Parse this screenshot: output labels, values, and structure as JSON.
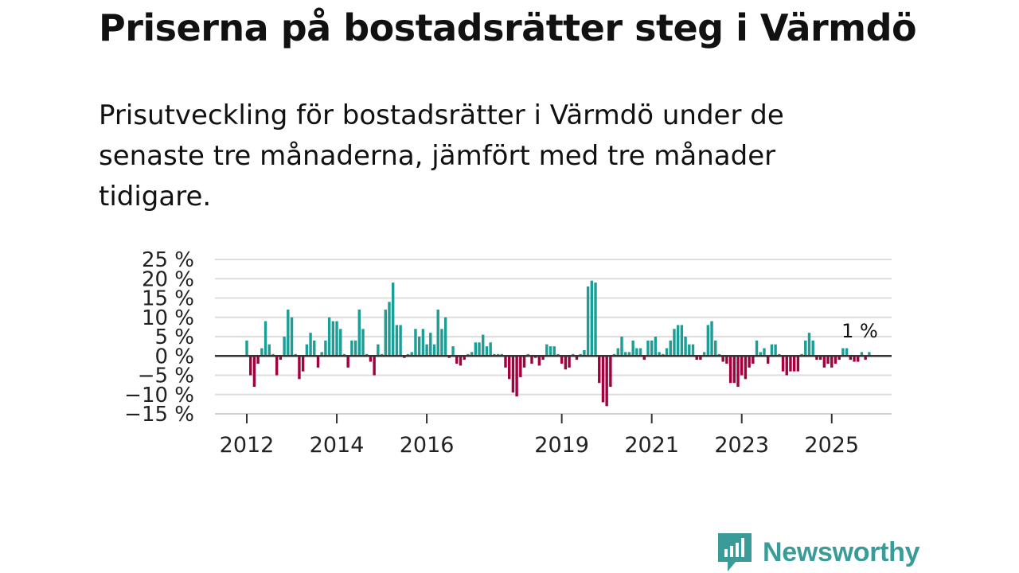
{
  "title": "Priserna på bostadsrätter steg i Värmdö",
  "subtitle": "Prisutveckling för bostadsrätter i Värmdö under de senaste tre månaderna, jämfört med tre månader tidigare.",
  "brand": {
    "name": "Newsworthy",
    "color": "#3a9c99"
  },
  "colors": {
    "positive": "#1a9e95",
    "negative": "#a3003f",
    "zero_line": "#333333",
    "grid": "#dddddd"
  },
  "chart_data": {
    "type": "bar",
    "ylabel": "",
    "xlabel": "",
    "ylim": [
      -15,
      25
    ],
    "y_ticks": [
      25,
      20,
      15,
      10,
      5,
      0,
      -5,
      -10,
      -15
    ],
    "y_tick_labels": [
      "25 %",
      "20 %",
      "15 %",
      "10 %",
      "5 %",
      "0 %",
      "−5 %",
      "−10 %",
      "−15 %"
    ],
    "x_ticks": [
      {
        "label": "2012",
        "index": 0
      },
      {
        "label": "2014",
        "index": 24
      },
      {
        "label": "2016",
        "index": 48
      },
      {
        "label": "2019",
        "index": 84
      },
      {
        "label": "2021",
        "index": 108
      },
      {
        "label": "2023",
        "index": 132
      },
      {
        "label": "2025",
        "index": 156
      }
    ],
    "start_period": "2012-01",
    "last_value_label": "1 %",
    "values": [
      4,
      -5,
      -8,
      -2,
      2,
      9,
      3,
      0.5,
      -5,
      -1,
      5,
      12,
      10,
      0.5,
      -6,
      -4,
      3,
      6,
      4,
      -3,
      1,
      4,
      10,
      9,
      9,
      7,
      0.5,
      -3,
      4,
      4,
      12,
      7,
      0.5,
      -1.5,
      -5,
      3,
      0.5,
      12,
      14,
      19,
      8,
      8,
      -0.5,
      0.5,
      1,
      7,
      5,
      7,
      3,
      6,
      3,
      12,
      7,
      10,
      -0.5,
      2.5,
      -2,
      -2.5,
      -1,
      0.5,
      1,
      3.5,
      3.5,
      5.5,
      2.5,
      3.5,
      0.5,
      0.5,
      0.5,
      -3,
      -6,
      -9.5,
      -10.5,
      -5.5,
      -3,
      0.5,
      -2,
      -0.5,
      -2.5,
      -1,
      3,
      2.5,
      2.5,
      0.5,
      -2,
      -3.5,
      -3,
      0.5,
      -1,
      0.5,
      1.5,
      18,
      19.5,
      19,
      -7,
      -12,
      -13,
      -8,
      0.5,
      2,
      5,
      1,
      1,
      4,
      2,
      2,
      -1,
      4,
      4,
      5,
      1,
      0.5,
      2,
      4,
      7,
      8,
      8,
      5,
      3,
      3,
      -1,
      -1,
      1,
      8,
      9,
      4,
      0.5,
      -1.5,
      -2,
      -7,
      -7,
      -8,
      -5,
      -6,
      -3,
      -2,
      4,
      1,
      2,
      -2,
      3,
      3,
      0.5,
      -4,
      -5,
      -4,
      -4,
      -4,
      0.5,
      4,
      6,
      4,
      -1,
      -1,
      -3,
      -2,
      -3,
      -2,
      -1,
      2,
      2,
      -1,
      -1.5,
      -1.5,
      1,
      -1,
      1
    ]
  }
}
